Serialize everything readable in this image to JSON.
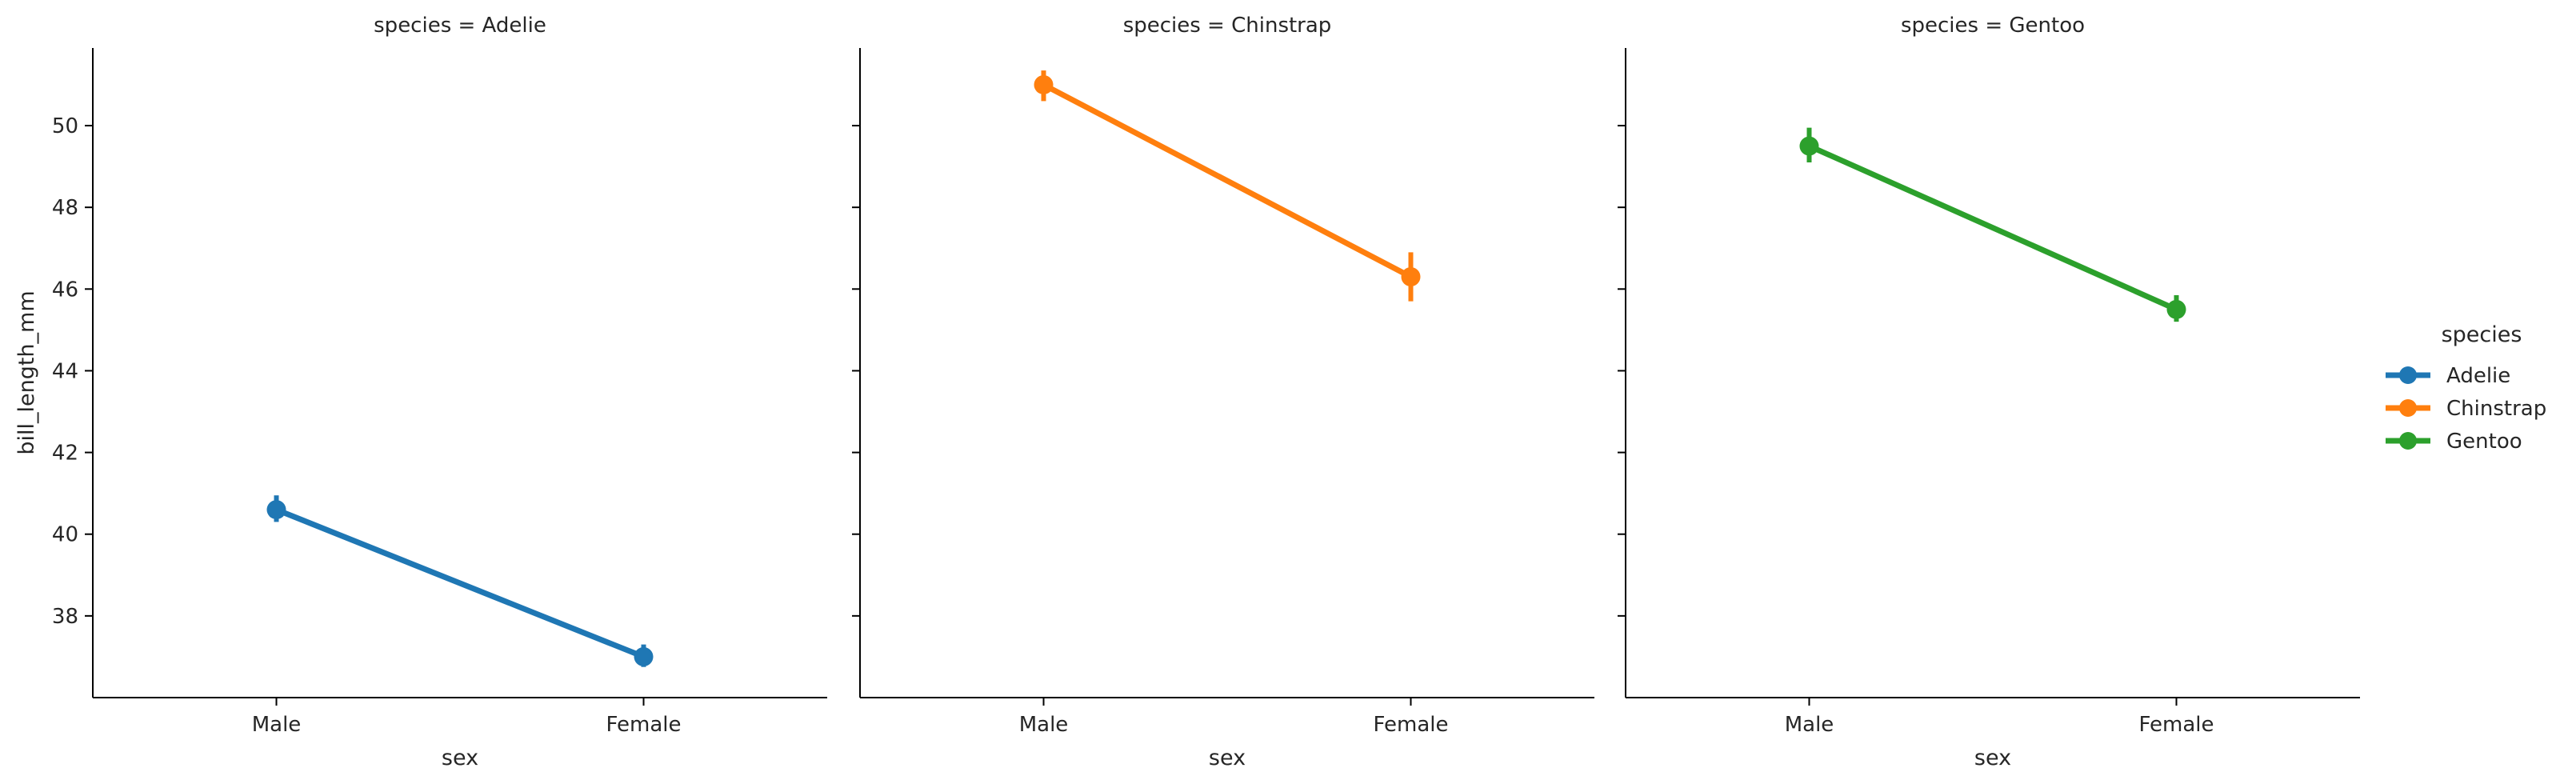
{
  "chart_data": {
    "type": "line",
    "ylabel": "bill_length_mm",
    "xlabel": "sex",
    "categories": [
      "Male",
      "Female"
    ],
    "yticks": [
      38,
      40,
      42,
      44,
      46,
      48,
      50
    ],
    "ylim": [
      36.0,
      51.9
    ],
    "legend": {
      "title": "species",
      "placement": "right",
      "entries": [
        {
          "label": "Adelie",
          "color": "#1f77b4"
        },
        {
          "label": "Chinstrap",
          "color": "#ff7f0e"
        },
        {
          "label": "Gentoo",
          "color": "#2ca02c"
        }
      ]
    },
    "facets": [
      {
        "title": "species = Adelie",
        "series": {
          "name": "Adelie",
          "color": "#1f77b4",
          "values": [
            40.6,
            37.0
          ],
          "ci": [
            [
              40.3,
              40.95
            ],
            [
              36.75,
              37.3
            ]
          ]
        }
      },
      {
        "title": "species = Chinstrap",
        "series": {
          "name": "Chinstrap",
          "color": "#ff7f0e",
          "values": [
            51.0,
            46.3
          ],
          "ci": [
            [
              50.6,
              51.35
            ],
            [
              45.7,
              46.9
            ]
          ]
        }
      },
      {
        "title": "species = Gentoo",
        "series": {
          "name": "Gentoo",
          "color": "#2ca02c",
          "values": [
            49.5,
            45.5
          ],
          "ci": [
            [
              49.1,
              49.95
            ],
            [
              45.2,
              45.85
            ]
          ]
        }
      }
    ]
  }
}
